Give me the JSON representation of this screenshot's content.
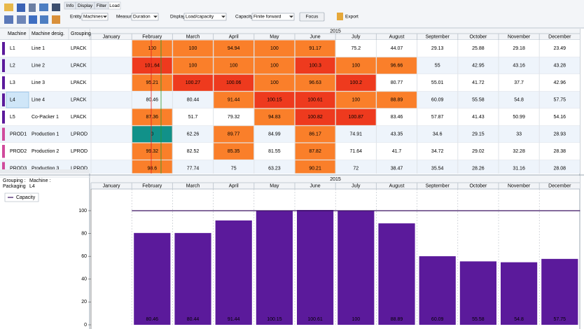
{
  "toolbar": {
    "tabs": [
      "Info",
      "Display",
      "Filter",
      "Load"
    ],
    "fields": [
      {
        "label": "Entity",
        "value": "Machines"
      },
      {
        "label": "Measure",
        "value": "Duration"
      },
      {
        "label": "Display",
        "value": "Load/capacity"
      },
      {
        "label": "Capacity",
        "value": "Finite forward"
      }
    ],
    "focus": "Focus",
    "export": "Export"
  },
  "grid": {
    "columns": [
      "Machine",
      "Machine desig.",
      "Grouping"
    ],
    "year": "2015",
    "months": [
      "January",
      "February",
      "March",
      "April",
      "May",
      "June",
      "July",
      "August",
      "September",
      "October",
      "November",
      "December"
    ],
    "rows": [
      {
        "machine": "L1",
        "designation": "Line 1",
        "grouping": "LPACK",
        "color": "#5b1a9b",
        "values": [
          null,
          100,
          100,
          94.94,
          100,
          91.17,
          75.2,
          44.07,
          29.13,
          25.88,
          29.18,
          23.49
        ]
      },
      {
        "machine": "L2",
        "designation": "Line 2",
        "grouping": "LPACK",
        "color": "#5b1a9b",
        "values": [
          null,
          101.64,
          100,
          100,
          100,
          100.3,
          100,
          96.66,
          55,
          42.95,
          43.16,
          43.28
        ]
      },
      {
        "machine": "L3",
        "designation": "Line 3",
        "grouping": "LPACK",
        "color": "#5b1a9b",
        "values": [
          null,
          95.21,
          100.27,
          100.06,
          100,
          96.63,
          100.2,
          80.77,
          55.01,
          41.72,
          37.7,
          42.96
        ]
      },
      {
        "machine": "L4",
        "designation": "Line 4",
        "grouping": "LPACK",
        "color": "#5b1a9b",
        "values": [
          null,
          80.46,
          80.44,
          91.44,
          100.15,
          100.61,
          100,
          88.89,
          60.09,
          55.58,
          54.8,
          57.75
        ]
      },
      {
        "machine": "L5",
        "designation": "Co-Packer 1",
        "grouping": "LPACK",
        "color": "#5b1a9b",
        "values": [
          null,
          87.36,
          51.7,
          79.32,
          94.83,
          100.82,
          100.87,
          83.46,
          57.87,
          41.43,
          50.99,
          54.16
        ]
      },
      {
        "machine": "PROD1",
        "designation": "Production 1",
        "grouping": "LPROD",
        "color": "#d04a9c",
        "values": [
          null,
          0,
          62.26,
          89.77,
          84.99,
          86.17,
          74.91,
          43.35,
          34.6,
          29.15,
          33,
          28.93
        ]
      },
      {
        "machine": "PROD2",
        "designation": "Production 2",
        "grouping": "LPROD",
        "color": "#d04a9c",
        "values": [
          null,
          99.32,
          82.52,
          85.35,
          81.55,
          87.82,
          71.64,
          41.7,
          34.72,
          29.02,
          32.28,
          28.38
        ]
      },
      {
        "machine": "PROD3",
        "designation": "Production 3",
        "grouping": "LPROD",
        "color": "#d04a9c",
        "values": [
          null,
          98.6,
          77.74,
          75,
          63.23,
          90.21,
          72,
          38.47,
          35.54,
          28.26,
          31.16,
          28.08
        ]
      }
    ]
  },
  "chart_panel": {
    "grouping_label": "Grouping :",
    "grouping": "Packaging",
    "machine_label": "Machine :",
    "machine": "L4"
  },
  "chart_data": {
    "type": "bar",
    "year": "2015",
    "categories": [
      "January",
      "February",
      "March",
      "April",
      "May",
      "June",
      "July",
      "August",
      "September",
      "October",
      "November",
      "December"
    ],
    "values": [
      null,
      80.46,
      80.44,
      91.44,
      100.15,
      100.61,
      100,
      88.89,
      60.09,
      55.58,
      54.8,
      57.75
    ],
    "color": "#5b1a9b",
    "series": [
      {
        "name": "Capacity",
        "color": "#3a1060",
        "values": [
          null,
          100,
          100,
          100,
          100,
          100,
          100,
          100,
          100,
          100,
          100,
          100
        ]
      }
    ],
    "ylim": [
      0,
      119
    ],
    "yticks": [
      0,
      20,
      40,
      60,
      80,
      100
    ]
  }
}
